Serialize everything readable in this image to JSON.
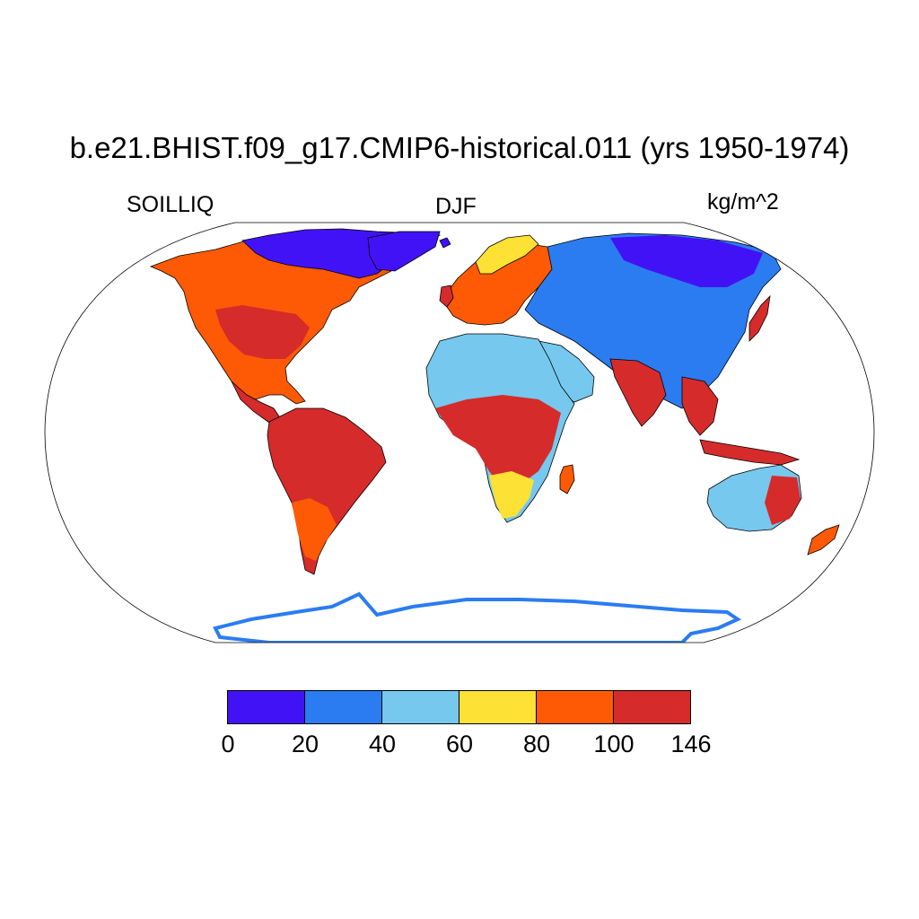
{
  "title": "b.e21.BHIST.f09_g17.CMIP6-historical.011 (yrs 1950-1974)",
  "left_label": "SOILLIQ",
  "center_label": "DJF",
  "units_label": "kg/m^2",
  "colorbar": {
    "colors": [
      "#4212f6",
      "#2b7cf0",
      "#76c8ee",
      "#fde135",
      "#fe5a05",
      "#d52b2b"
    ],
    "levels": [
      "0",
      "20",
      "40",
      "60",
      "80",
      "100",
      "146"
    ]
  },
  "map": {
    "projection": "Robinson",
    "ocean_color": "#ffffff",
    "coastline_color": "#000000"
  }
}
